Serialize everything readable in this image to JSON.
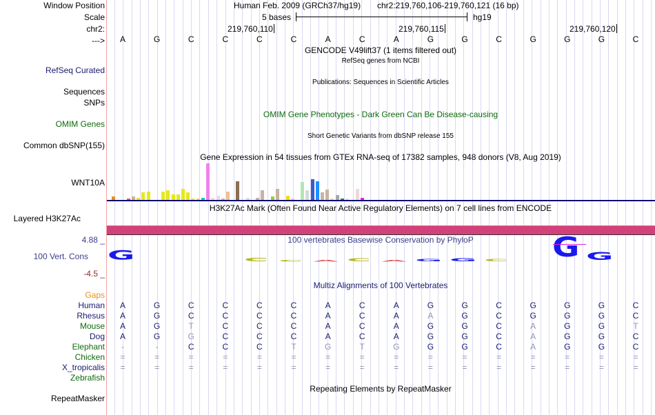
{
  "labels": {
    "window_position": "Window Position",
    "scale": "Scale",
    "chr": "chr2:",
    "strand": "--->",
    "refseq": "RefSeq Curated",
    "sequences": "Sequences",
    "snps": "SNPs",
    "omim": "OMIM Genes",
    "common_dbsnp": "Common dbSNP(155)",
    "wnt10a": "WNT10A",
    "layered_h3k27ac": "Layered H3K27Ac",
    "cons_max": "4.88 _",
    "cons_label": "100 Vert. Cons",
    "cons_min": "-4.5 _",
    "gaps": "Gaps",
    "species": [
      "Human",
      "Rhesus",
      "Mouse",
      "Dog",
      "Elephant",
      "Chicken",
      "X_tropicalis",
      "Zebrafish"
    ],
    "repeatmasker": "RepeatMasker"
  },
  "header": {
    "assembly": "Human Feb. 2009 (GRCh37/hg19)",
    "position": "chr2:219,760,106-219,760,121 (16 bp)",
    "scale_text": "5 bases",
    "scale_db": "hg19",
    "positions": [
      "219,760,110",
      "219,760,115",
      "219,760,120"
    ]
  },
  "sequence": [
    "A",
    "G",
    "C",
    "C",
    "C",
    "C",
    "A",
    "C",
    "A",
    "G",
    "G",
    "C",
    "G",
    "G",
    "G",
    "C"
  ],
  "tracks": {
    "gencode": "GENCODE V49lift37 (1 items filtered out)",
    "refseq": "RefSeq genes from NCBI",
    "publications": "Publications: Sequences in Scientific Articles",
    "omim": "OMIM Gene Phenotypes - Dark Green Can Be Disease-causing",
    "dbsnp": "Short Genetic Variants from dbSNP release 155",
    "gtex": "Gene Expression in 54 tissues from GTEx RNA-seq of 17382 samples, 948 donors (V8, Aug 2019)",
    "h3k27ac": "H3K27Ac Mark (Often Found Near Active Regulatory Elements) on 7 cell lines from ENCODE",
    "phylop": "100 vertebrates Basewise Conservation by PhyloP",
    "multiz": "Multiz Alignments of 100 Vertebrates",
    "repeatmasker": "Repeating Elements by RepeatMasker"
  },
  "colors": {
    "h3k27ac_bar": "#d2417a",
    "gtex_baseline": "#0c0c6e",
    "separator": "#f2a0a0",
    "grid": "#d8d8f4",
    "cons_blue": "#1a1aee",
    "cons_olive": "#b4b41e"
  },
  "gtex_bars": [
    {
      "color": "#e8901a",
      "value": 0.09
    },
    {
      "color": "#ff7f50",
      "value": 0.0
    },
    {
      "color": "#ff7f50",
      "value": 0.0
    },
    {
      "color": "#e0604c",
      "value": 0.03
    },
    {
      "color": "#c8b4a0",
      "value": 0.09
    },
    {
      "color": "#e8e81a",
      "value": 0.06
    },
    {
      "color": "#e8e81a",
      "value": 0.2
    },
    {
      "color": "#e8e81a",
      "value": 0.23
    },
    {
      "color": "#e8e81a",
      "value": 0.0
    },
    {
      "color": "#e8e81a",
      "value": 0.0
    },
    {
      "color": "#e8e81a",
      "value": 0.23
    },
    {
      "color": "#e8e81a",
      "value": 0.26
    },
    {
      "color": "#e8e81a",
      "value": 0.16
    },
    {
      "color": "#e8e81a",
      "value": 0.16
    },
    {
      "color": "#e8e81a",
      "value": 0.31
    },
    {
      "color": "#e8e81a",
      "value": 0.2
    },
    {
      "color": "#e8e81a",
      "value": 0.03
    },
    {
      "color": "#e8e81a",
      "value": 0.03
    },
    {
      "color": "#20c0c0",
      "value": 0.06
    },
    {
      "color": "#ee82ee",
      "value": 1.0
    },
    {
      "color": "#f0d8d8",
      "value": 0.06
    },
    {
      "color": "#f0d8d8",
      "value": 0.11
    },
    {
      "color": "#c8b4a0",
      "value": 0.03
    },
    {
      "color": "#f0c090",
      "value": 0.23
    },
    {
      "color": "#f0d8d8",
      "value": 0.0
    },
    {
      "color": "#8c6e50",
      "value": 0.51
    },
    {
      "color": "#f0d8d8",
      "value": 0.0
    },
    {
      "color": "#f0d8d8",
      "value": 0.06
    },
    {
      "color": "#c8b4a0",
      "value": 0.0
    },
    {
      "color": "#c8b4a0",
      "value": 0.06
    },
    {
      "color": "#c8b4a0",
      "value": 0.26
    },
    {
      "color": "#9acd32",
      "value": 0.0
    },
    {
      "color": "#9acd32",
      "value": 0.09
    },
    {
      "color": "#c8b4a0",
      "value": 0.31
    },
    {
      "color": "#ffd700",
      "value": 0.0
    },
    {
      "color": "#ffd700",
      "value": 0.11
    },
    {
      "color": "#f0c8d0",
      "value": 0.03
    },
    {
      "color": "#b4e6b4",
      "value": 0.0
    },
    {
      "color": "#b4e6b4",
      "value": 0.49
    },
    {
      "color": "#d8d8d8",
      "value": 0.26
    },
    {
      "color": "#3c5ac8",
      "value": 0.57
    },
    {
      "color": "#1e90ff",
      "value": 0.51
    },
    {
      "color": "#c8b4a0",
      "value": 0.2
    },
    {
      "color": "#c8b4a0",
      "value": 0.29
    },
    {
      "color": "#ffd0a0",
      "value": 0.03
    },
    {
      "color": "#a8a8a8",
      "value": 0.14
    },
    {
      "color": "#0c8c50",
      "value": 0.03
    },
    {
      "color": "#f0d8d8",
      "value": 0.03
    },
    {
      "color": "#f0d8d8",
      "value": 0.0
    },
    {
      "color": "#f0d8d8",
      "value": 0.31
    },
    {
      "color": "#ff10f0",
      "value": 0.06
    }
  ],
  "conservation": [
    {
      "base": "G",
      "color": "#1a1aee",
      "score": 2.3
    },
    {
      "base": "",
      "color": "",
      "score": 0
    },
    {
      "base": "",
      "color": "",
      "score": 0
    },
    {
      "base": "",
      "color": "",
      "score": 0
    },
    {
      "base": "C",
      "color": "#b4b41e",
      "score": 0.9
    },
    {
      "base": "C",
      "color": "#b4b41e",
      "score": 0.1
    },
    {
      "base": "A",
      "color": "#e06060",
      "score": 0.05
    },
    {
      "base": "C",
      "color": "#b4b41e",
      "score": 0.8
    },
    {
      "base": "A",
      "color": "#e06060",
      "score": 0.05
    },
    {
      "base": "G",
      "color": "#1a1aee",
      "score": 0.6
    },
    {
      "base": "G",
      "color": "#1a1aee",
      "score": 0.8
    },
    {
      "base": "C",
      "color": "#b4b41e",
      "score": 0.6
    },
    {
      "base": "",
      "color": "",
      "score": 0
    },
    {
      "base": "G",
      "color": "#1a1aee",
      "score": 4.88
    },
    {
      "base": "G",
      "color": "#1a1aee",
      "score": 2.0
    },
    {
      "base": "",
      "color": "",
      "score": 0
    }
  ],
  "alignment": [
    {
      "species": "Human",
      "color": "navy",
      "bases": [
        "A",
        "G",
        "C",
        "C",
        "C",
        "C",
        "A",
        "C",
        "A",
        "G",
        "G",
        "C",
        "G",
        "G",
        "G",
        "C"
      ]
    },
    {
      "species": "Rhesus",
      "color": "navy",
      "bases": [
        "A",
        "G",
        "C",
        "C",
        "C",
        "C",
        "A",
        "C",
        "A",
        "a",
        "G",
        "C",
        "G",
        "G",
        "G",
        "C"
      ]
    },
    {
      "species": "Mouse",
      "color": "green",
      "bases": [
        "A",
        "G",
        "t",
        "C",
        "C",
        "C",
        "A",
        "C",
        "A",
        "G",
        "G",
        "C",
        "a",
        "G",
        "G",
        "t"
      ]
    },
    {
      "species": "Dog",
      "color": "navy",
      "bases": [
        "A",
        "G",
        "g",
        "C",
        "C",
        "C",
        "A",
        "C",
        "A",
        "G",
        "G",
        "C",
        "a",
        "G",
        "G",
        "C"
      ]
    },
    {
      "species": "Elephant",
      "color": "green",
      "bases": [
        "-",
        "-",
        "C",
        "C",
        "C",
        "t",
        "g",
        "t",
        "g",
        "G",
        "G",
        "C",
        "a",
        "G",
        "G",
        "C"
      ]
    },
    {
      "species": "Chicken",
      "color": "green",
      "bases": [
        "=",
        "=",
        "=",
        "=",
        "=",
        "=",
        "=",
        "=",
        "=",
        "=",
        "=",
        "=",
        "=",
        "=",
        "=",
        "="
      ]
    },
    {
      "species": "X_tropicalis",
      "color": "navy",
      "bases": [
        "=",
        "=",
        "=",
        "=",
        "=",
        "=",
        "=",
        "=",
        "=",
        "=",
        "=",
        "=",
        "=",
        "=",
        "=",
        "="
      ]
    },
    {
      "species": "Zebrafish",
      "color": "green",
      "bases": [
        "",
        "",
        "",
        "",
        "",
        "",
        "",
        "",
        "",
        "",
        "",
        "",
        "",
        "",
        "",
        ""
      ]
    }
  ]
}
